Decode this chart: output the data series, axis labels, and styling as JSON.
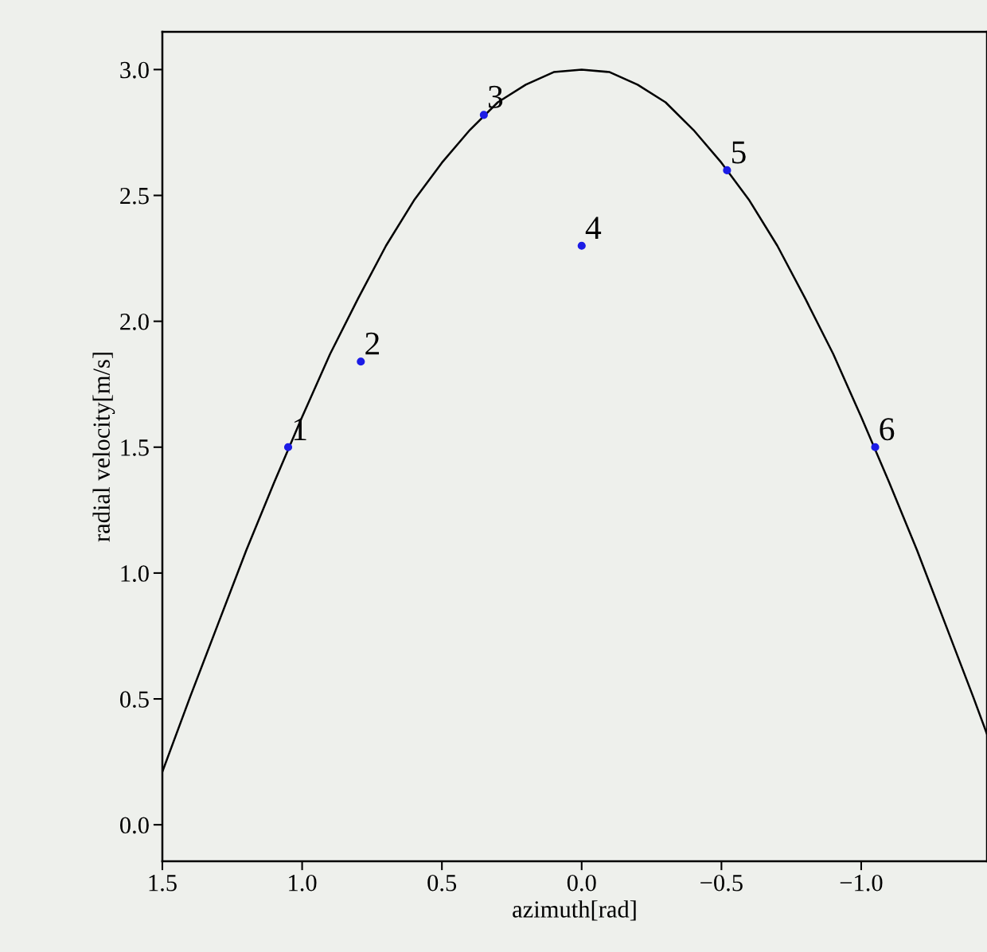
{
  "chart_data": {
    "type": "line",
    "xlabel": "azimuth[rad]",
    "ylabel": "radial velocity[m/s]",
    "xlim": [
      1.5,
      -1.45
    ],
    "xticks": [
      1.5,
      {
        "value": 1.0,
        "label": "1.0"
      },
      0.5,
      {
        "value": 0.0,
        "label": "0.0"
      },
      {
        "value": -0.5,
        "label": "−0.5"
      },
      {
        "value": -1.0,
        "label": "−1.0"
      }
    ],
    "ylim": [
      -0.145,
      3.15
    ],
    "yticks": [
      {
        "value": 0.0,
        "label": "0.0"
      },
      0.5,
      {
        "value": 1.0,
        "label": "1.0"
      },
      1.5,
      {
        "value": 2.0,
        "label": "2.0"
      },
      2.5,
      {
        "value": 3.0,
        "label": "3.0"
      }
    ],
    "grid": false,
    "legend": false,
    "series": [
      {
        "color": "#000000",
        "marker": "none",
        "line_style": "solid",
        "x": [
          1.5,
          1.4,
          1.3,
          1.2,
          1.1,
          1.0,
          0.9,
          0.8,
          0.7,
          0.6,
          0.5,
          0.4,
          0.3,
          0.2,
          0.1,
          0.0,
          -0.1,
          -0.2,
          -0.3,
          -0.4,
          -0.5,
          -0.6,
          -0.7,
          -0.8,
          -0.9,
          -1.0,
          -1.1,
          -1.2,
          -1.3,
          -1.4,
          -1.45
        ],
        "values": [
          0.21,
          0.51,
          0.8,
          1.09,
          1.36,
          1.62,
          1.87,
          2.09,
          2.3,
          2.48,
          2.63,
          2.76,
          2.87,
          2.94,
          2.99,
          3.0,
          2.99,
          2.94,
          2.87,
          2.76,
          2.63,
          2.48,
          2.3,
          2.09,
          1.87,
          1.62,
          1.36,
          1.09,
          0.8,
          0.51,
          0.36
        ]
      },
      {
        "type": "scatter",
        "color": "#1c1ce6",
        "marker": "circle",
        "x": [
          1.05,
          0.79,
          0.35,
          0.0,
          -0.52,
          -1.05
        ],
        "values": [
          1.5,
          1.84,
          2.82,
          2.3,
          2.6,
          1.5
        ]
      }
    ],
    "annotations": [
      {
        "text": "1",
        "x": 1.05,
        "y": 1.5
      },
      {
        "text": "2",
        "x": 0.79,
        "y": 1.84
      },
      {
        "text": "3",
        "x": 0.35,
        "y": 2.82
      },
      {
        "text": "4",
        "x": 0.0,
        "y": 2.3
      },
      {
        "text": "5",
        "x": -0.52,
        "y": 2.6
      },
      {
        "text": "6",
        "x": -1.05,
        "y": 1.5
      }
    ]
  }
}
